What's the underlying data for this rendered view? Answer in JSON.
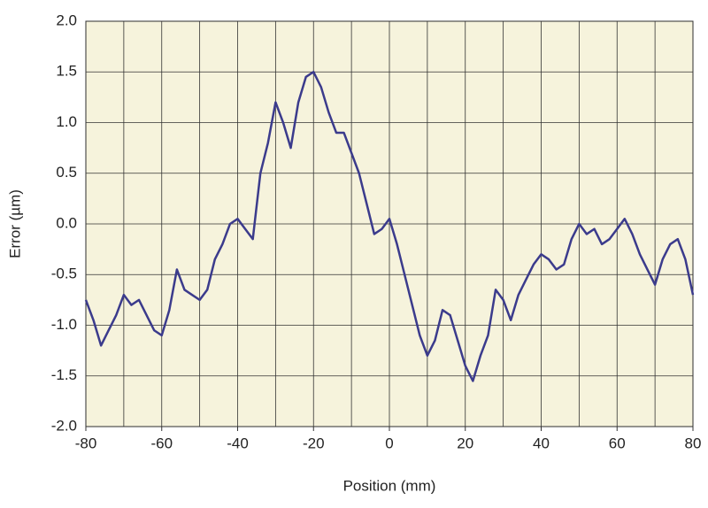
{
  "chart_data": {
    "type": "line",
    "x_label": "Position (mm)",
    "y_label": "Error (µm)",
    "x": [
      -80,
      -78,
      -76,
      -74,
      -72,
      -70,
      -68,
      -66,
      -64,
      -62,
      -60,
      -58,
      -56,
      -54,
      -52,
      -50,
      -48,
      -46,
      -44,
      -42,
      -40,
      -38,
      -36,
      -34,
      -32,
      -30,
      -28,
      -26,
      -24,
      -22,
      -20,
      -18,
      -16,
      -14,
      -12,
      -10,
      -8,
      -6,
      -4,
      -2,
      0,
      2,
      4,
      6,
      8,
      10,
      12,
      14,
      16,
      18,
      20,
      22,
      24,
      26,
      28,
      30,
      32,
      34,
      36,
      38,
      40,
      42,
      44,
      46,
      48,
      50,
      52,
      54,
      56,
      58,
      60,
      62,
      64,
      66,
      68,
      70,
      72,
      74,
      76,
      78,
      80
    ],
    "series": [
      {
        "name": "Error",
        "color": "#3b3b8c",
        "values": [
          -0.75,
          -0.95,
          -1.2,
          -1.05,
          -0.9,
          -0.7,
          -0.8,
          -0.75,
          -0.9,
          -1.05,
          -1.1,
          -0.85,
          -0.45,
          -0.65,
          -0.7,
          -0.75,
          -0.65,
          -0.35,
          -0.2,
          0.0,
          0.05,
          -0.05,
          -0.15,
          0.5,
          0.8,
          1.2,
          1.0,
          0.75,
          1.2,
          1.45,
          1.5,
          1.35,
          1.1,
          0.9,
          0.9,
          0.7,
          0.5,
          0.2,
          -0.1,
          -0.05,
          0.05,
          -0.2,
          -0.5,
          -0.8,
          -1.1,
          -1.3,
          -1.15,
          -0.85,
          -0.9,
          -1.15,
          -1.4,
          -1.55,
          -1.3,
          -1.1,
          -0.65,
          -0.75,
          -0.95,
          -0.7,
          -0.55,
          -0.4,
          -0.3,
          -0.35,
          -0.45,
          -0.4,
          -0.15,
          0.0,
          -0.1,
          -0.05,
          -0.2,
          -0.15,
          -0.05,
          0.05,
          -0.1,
          -0.3,
          -0.45,
          -0.6,
          -0.35,
          -0.2,
          -0.15,
          -0.35,
          -0.7
        ]
      }
    ],
    "xlim": [
      -80,
      80
    ],
    "ylim": [
      -2,
      2
    ],
    "xticks": [
      -80,
      -60,
      -40,
      -20,
      0,
      20,
      40,
      60,
      80
    ],
    "x_grid": [
      -80,
      -70,
      -60,
      -50,
      -40,
      -30,
      -20,
      -10,
      0,
      10,
      20,
      30,
      40,
      50,
      60,
      70,
      80
    ],
    "yticks": [
      {
        "value": -2,
        "label": "-2.0"
      },
      -1.5,
      {
        "value": -1,
        "label": "-1.0"
      },
      -0.5,
      {
        "value": 0,
        "label": "0.0"
      },
      0.5,
      {
        "value": 1,
        "label": "1.0"
      },
      1.5,
      {
        "value": 2,
        "label": "2.0"
      }
    ],
    "grid": true,
    "background": "#f6f3dc"
  }
}
